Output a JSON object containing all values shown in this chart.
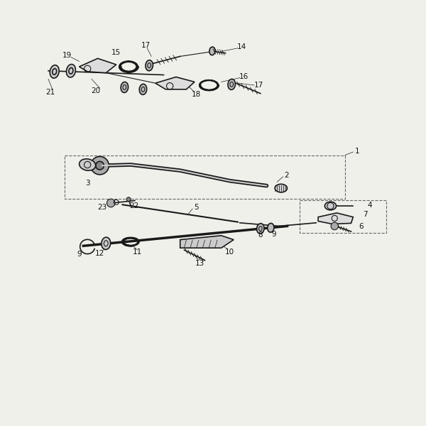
{
  "bg_color": "#f0f0eb",
  "line_color": "#1a1a1a",
  "label_color": "#111111",
  "fig_width": 5.83,
  "fig_height": 8.24
}
